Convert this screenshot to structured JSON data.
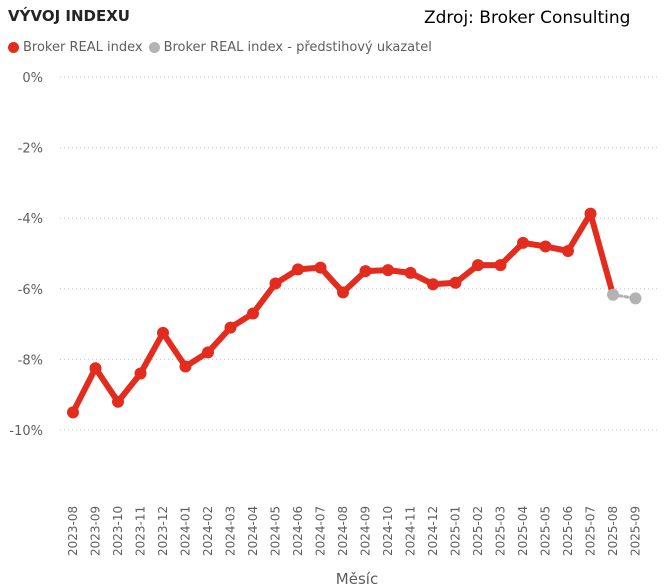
{
  "title": "VÝVOJ INDEXU",
  "source": "Zdroj: Broker Consulting",
  "colors": {
    "main": "#e32c1e",
    "forecast": "#b3b3b3"
  },
  "chart_data": {
    "type": "line",
    "xlabel": "Měsíc",
    "ylabel": "",
    "ylim": [
      -10,
      0
    ],
    "yticks": [
      0,
      -2,
      -4,
      -6,
      -8,
      -10
    ],
    "ytick_labels": [
      "0%",
      "-2%",
      "-4%",
      "-6%",
      "-8%",
      "-10%"
    ],
    "grid": true,
    "legend_position": "top-left",
    "categories": [
      "2023-08",
      "2023-09",
      "2023-10",
      "2023-11",
      "2023-12",
      "2024-01",
      "2024-02",
      "2024-03",
      "2024-04",
      "2024-05",
      "2024-06",
      "2024-07",
      "2024-08",
      "2024-09",
      "2024-10",
      "2024-11",
      "2024-12",
      "2025-01",
      "2025-02",
      "2025-03",
      "2025-04",
      "2025-05",
      "2025-06",
      "2025-07",
      "2025-08",
      "2025-09"
    ],
    "series": [
      {
        "name": "Broker REAL index",
        "values": [
          -9.5,
          -8.25,
          -9.2,
          -8.4,
          -7.25,
          -8.2,
          -7.8,
          -7.1,
          -6.7,
          -5.85,
          -5.45,
          -5.4,
          -6.1,
          -5.5,
          -5.47,
          -5.55,
          -5.87,
          -5.83,
          -5.33,
          -5.33,
          -4.7,
          -4.8,
          -4.93,
          -3.87,
          -6.17,
          null
        ]
      },
      {
        "name": "Broker REAL index - předstihový ukazatel",
        "values": [
          null,
          null,
          null,
          null,
          null,
          null,
          null,
          null,
          null,
          null,
          null,
          null,
          null,
          null,
          null,
          null,
          null,
          null,
          null,
          null,
          null,
          null,
          null,
          null,
          -6.17,
          -6.27
        ]
      }
    ]
  }
}
